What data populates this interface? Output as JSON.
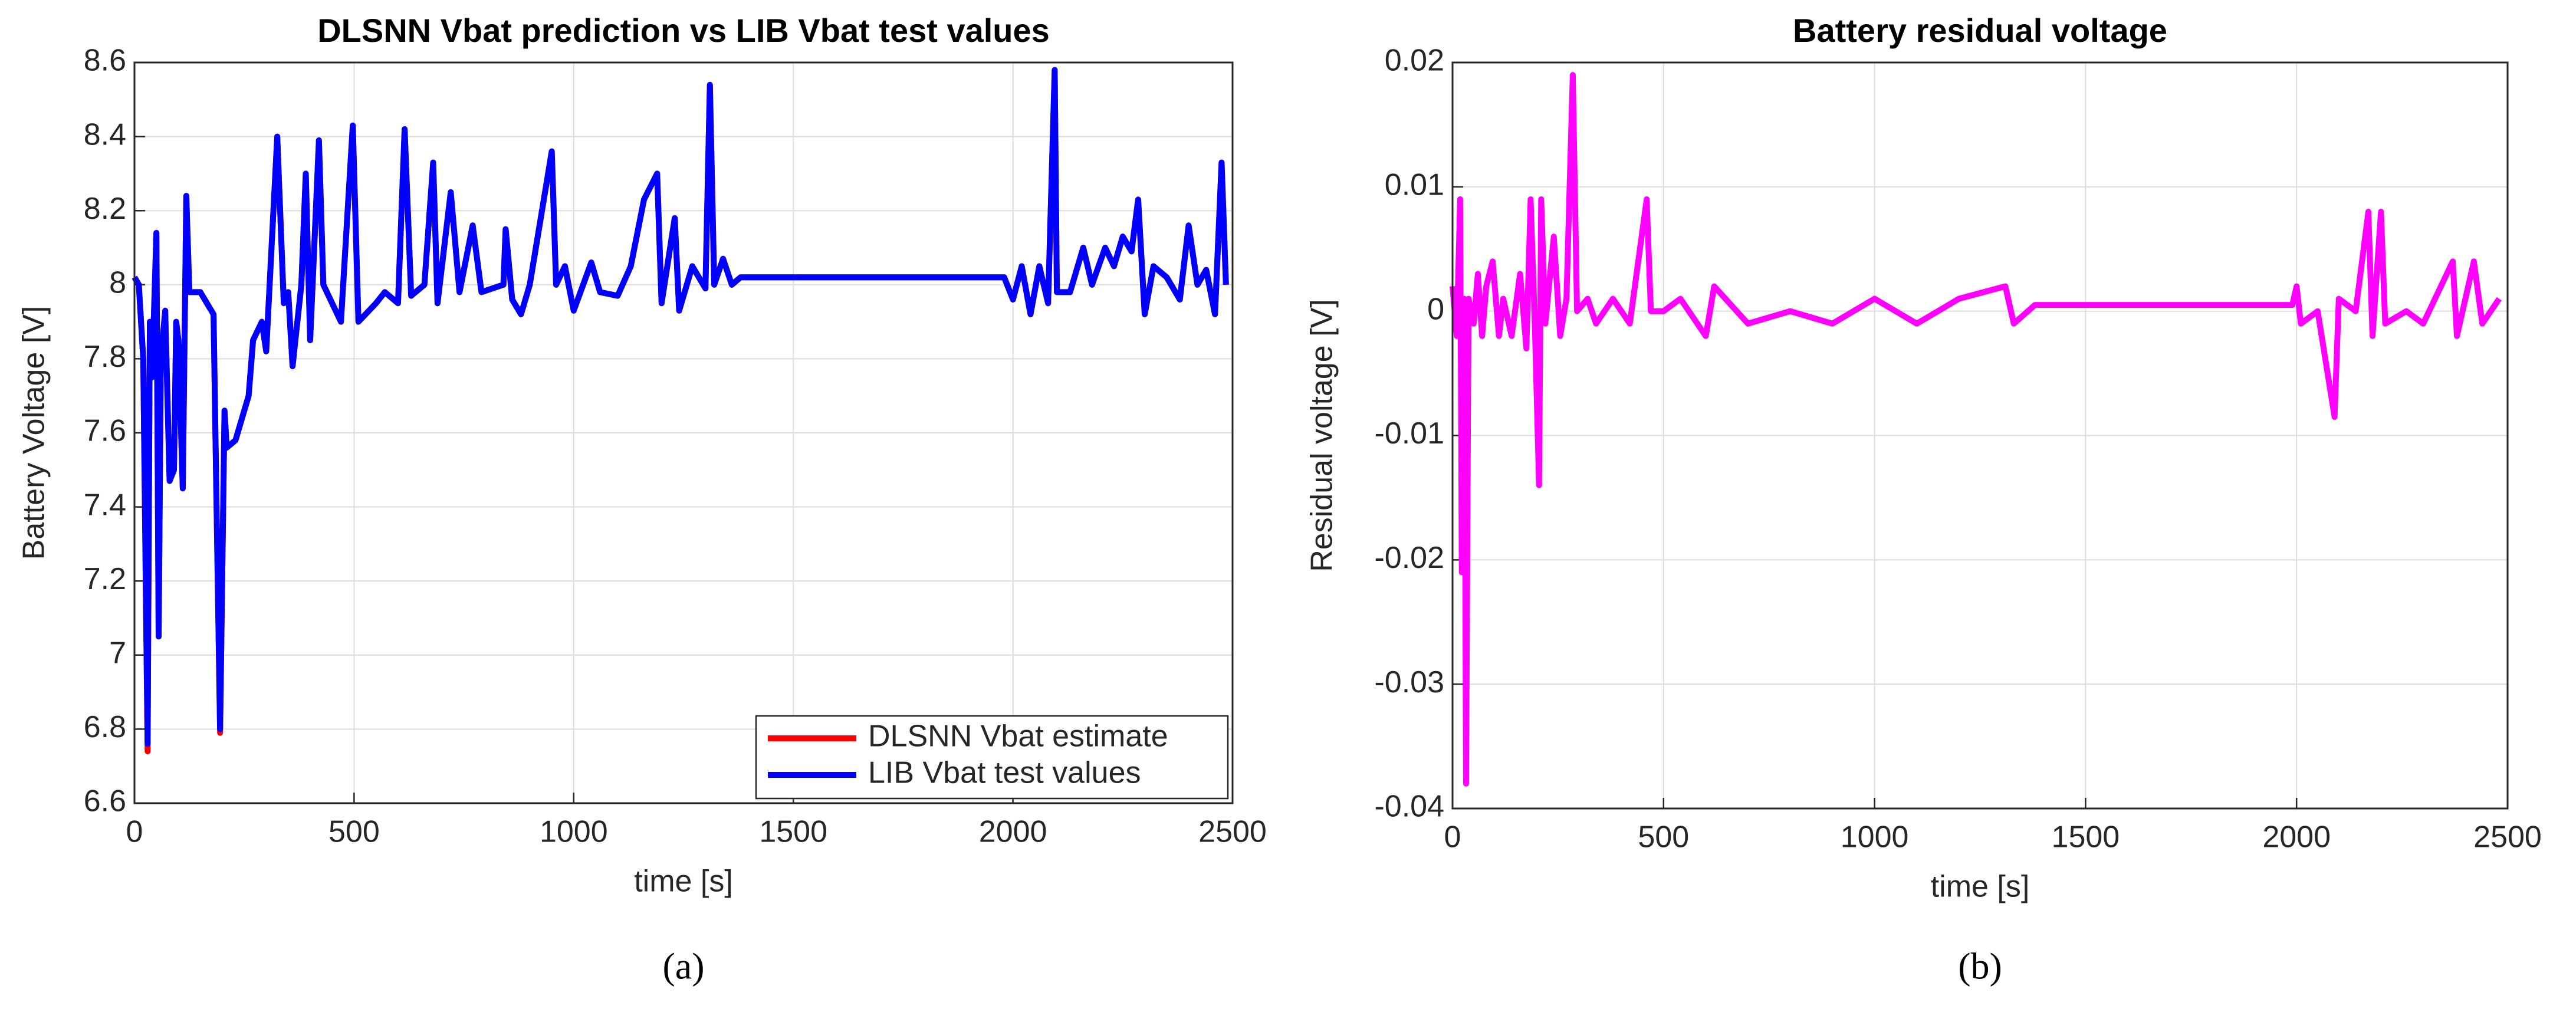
{
  "chart_data": [
    {
      "type": "line",
      "title": "DLSNN Vbat prediction vs LIB Vbat test values",
      "xlabel": "time [s]",
      "ylabel": "Battery Voltage [V]",
      "caption": "(a)",
      "xlim": [
        0,
        2500
      ],
      "xticks": [
        0,
        500,
        1000,
        1500,
        2000,
        2500
      ],
      "ylim": [
        6.6,
        8.6
      ],
      "yticks": [
        6.6,
        6.8,
        7,
        7.2,
        7.4,
        7.6,
        7.8,
        8,
        8.2,
        8.4,
        8.6
      ],
      "grid": true,
      "legend": "lower right",
      "x": [
        0,
        10,
        20,
        30,
        35,
        40,
        50,
        55,
        60,
        70,
        80,
        90,
        95,
        100,
        110,
        118,
        125,
        150,
        180,
        195,
        205,
        210,
        230,
        260,
        270,
        290,
        300,
        325,
        340,
        350,
        360,
        380,
        390,
        400,
        420,
        430,
        470,
        497,
        510,
        550,
        570,
        600,
        615,
        630,
        660,
        680,
        690,
        720,
        740,
        770,
        790,
        840,
        845,
        860,
        880,
        900,
        950,
        960,
        980,
        1000,
        1040,
        1060,
        1100,
        1130,
        1160,
        1190,
        1200,
        1230,
        1240,
        1270,
        1300,
        1310,
        1320,
        1340,
        1360,
        1380,
        1980,
        2000,
        2020,
        2040,
        2060,
        2080,
        2095,
        2100,
        2130,
        2160,
        2180,
        2210,
        2230,
        2250,
        2270,
        2285,
        2300,
        2320,
        2350,
        2380,
        2400,
        2420,
        2440,
        2460,
        2475,
        2485
      ],
      "series": [
        {
          "name": "DLSNN Vbat estimate",
          "color": "#ff0000",
          "values": [
            8.02,
            8.0,
            7.8,
            6.74,
            7.9,
            7.75,
            8.14,
            7.05,
            7.8,
            7.93,
            7.47,
            7.5,
            7.9,
            7.85,
            7.45,
            8.24,
            7.98,
            7.98,
            7.92,
            6.79,
            7.66,
            7.56,
            7.58,
            7.7,
            7.85,
            7.9,
            7.82,
            8.4,
            7.95,
            7.98,
            7.78,
            8.0,
            8.3,
            7.85,
            8.39,
            8.0,
            7.9,
            8.43,
            7.9,
            7.95,
            7.98,
            7.95,
            8.42,
            7.97,
            8.0,
            8.33,
            7.95,
            8.25,
            7.98,
            8.16,
            7.98,
            8.0,
            8.15,
            7.96,
            7.92,
            8.0,
            8.36,
            8.0,
            8.05,
            7.93,
            8.06,
            7.98,
            7.97,
            8.05,
            8.23,
            8.3,
            7.95,
            8.18,
            7.93,
            8.05,
            7.99,
            8.54,
            8.0,
            8.07,
            8.0,
            8.02,
            8.02,
            7.96,
            8.05,
            7.92,
            8.05,
            7.95,
            8.58,
            7.98,
            7.98,
            8.1,
            8.0,
            8.1,
            8.05,
            8.13,
            8.09,
            8.23,
            7.92,
            8.05,
            8.02,
            7.96,
            8.16,
            8.0,
            8.04,
            7.92,
            8.33,
            8.0
          ]
        },
        {
          "name": "LIB Vbat test values",
          "color": "#0000ff",
          "values": [
            8.02,
            8.0,
            7.8,
            6.76,
            7.9,
            7.75,
            8.14,
            7.05,
            7.8,
            7.93,
            7.47,
            7.5,
            7.9,
            7.85,
            7.45,
            8.24,
            7.98,
            7.98,
            7.92,
            6.8,
            7.66,
            7.56,
            7.58,
            7.7,
            7.85,
            7.9,
            7.82,
            8.4,
            7.95,
            7.98,
            7.78,
            8.0,
            8.3,
            7.85,
            8.39,
            8.0,
            7.9,
            8.43,
            7.9,
            7.95,
            7.98,
            7.95,
            8.42,
            7.97,
            8.0,
            8.33,
            7.95,
            8.25,
            7.98,
            8.16,
            7.98,
            8.0,
            8.15,
            7.96,
            7.92,
            8.0,
            8.36,
            8.0,
            8.05,
            7.93,
            8.06,
            7.98,
            7.97,
            8.05,
            8.23,
            8.3,
            7.95,
            8.18,
            7.93,
            8.05,
            7.99,
            8.54,
            8.0,
            8.07,
            8.0,
            8.02,
            8.02,
            7.96,
            8.05,
            7.92,
            8.05,
            7.95,
            8.58,
            7.98,
            7.98,
            8.1,
            8.0,
            8.1,
            8.05,
            8.13,
            8.09,
            8.23,
            7.92,
            8.05,
            8.02,
            7.96,
            8.16,
            8.0,
            8.04,
            7.92,
            8.33,
            8.0
          ]
        }
      ]
    },
    {
      "type": "line",
      "title": "Battery residual voltage",
      "xlabel": "time [s]",
      "ylabel": "Residual voltage [V]",
      "caption": "(b)",
      "xlim": [
        0,
        2500
      ],
      "xticks": [
        0,
        500,
        1000,
        1500,
        2000,
        2500
      ],
      "ylim": [
        -0.04,
        0.02
      ],
      "yticks": [
        -0.04,
        -0.03,
        -0.02,
        -0.01,
        0,
        0.01,
        0.02
      ],
      "grid": true,
      "x": [
        0,
        10,
        18,
        22,
        28,
        32,
        38,
        50,
        60,
        70,
        80,
        95,
        110,
        120,
        140,
        160,
        175,
        185,
        195,
        205,
        210,
        220,
        240,
        255,
        270,
        285,
        295,
        320,
        340,
        380,
        420,
        460,
        470,
        500,
        540,
        600,
        620,
        700,
        800,
        900,
        1000,
        1100,
        1200,
        1310,
        1330,
        1380,
        1990,
        2000,
        2010,
        2050,
        2090,
        2100,
        2140,
        2170,
        2180,
        2200,
        2210,
        2260,
        2300,
        2370,
        2380,
        2420,
        2440,
        2480
      ],
      "series": [
        {
          "name": "Residual",
          "color": "#ff00ff",
          "values": [
            0.002,
            -0.002,
            0.009,
            -0.021,
            0.001,
            -0.038,
            0.001,
            -0.001,
            0.003,
            -0.002,
            0.002,
            0.004,
            -0.002,
            0.001,
            -0.002,
            0.003,
            -0.003,
            0.009,
            -0.001,
            -0.014,
            0.009,
            -0.001,
            0.006,
            -0.002,
            0.001,
            0.019,
            0.0,
            0.001,
            -0.001,
            0.001,
            -0.001,
            0.009,
            0.0,
            0.0,
            0.001,
            -0.002,
            0.002,
            -0.001,
            0.0,
            -0.001,
            0.001,
            -0.001,
            0.001,
            0.002,
            -0.001,
            0.0005,
            0.0005,
            0.002,
            -0.001,
            0.0,
            -0.0085,
            0.001,
            0.0,
            0.008,
            -0.002,
            0.008,
            -0.001,
            0.0,
            -0.001,
            0.004,
            -0.002,
            0.004,
            -0.001,
            0.001
          ]
        }
      ]
    }
  ]
}
